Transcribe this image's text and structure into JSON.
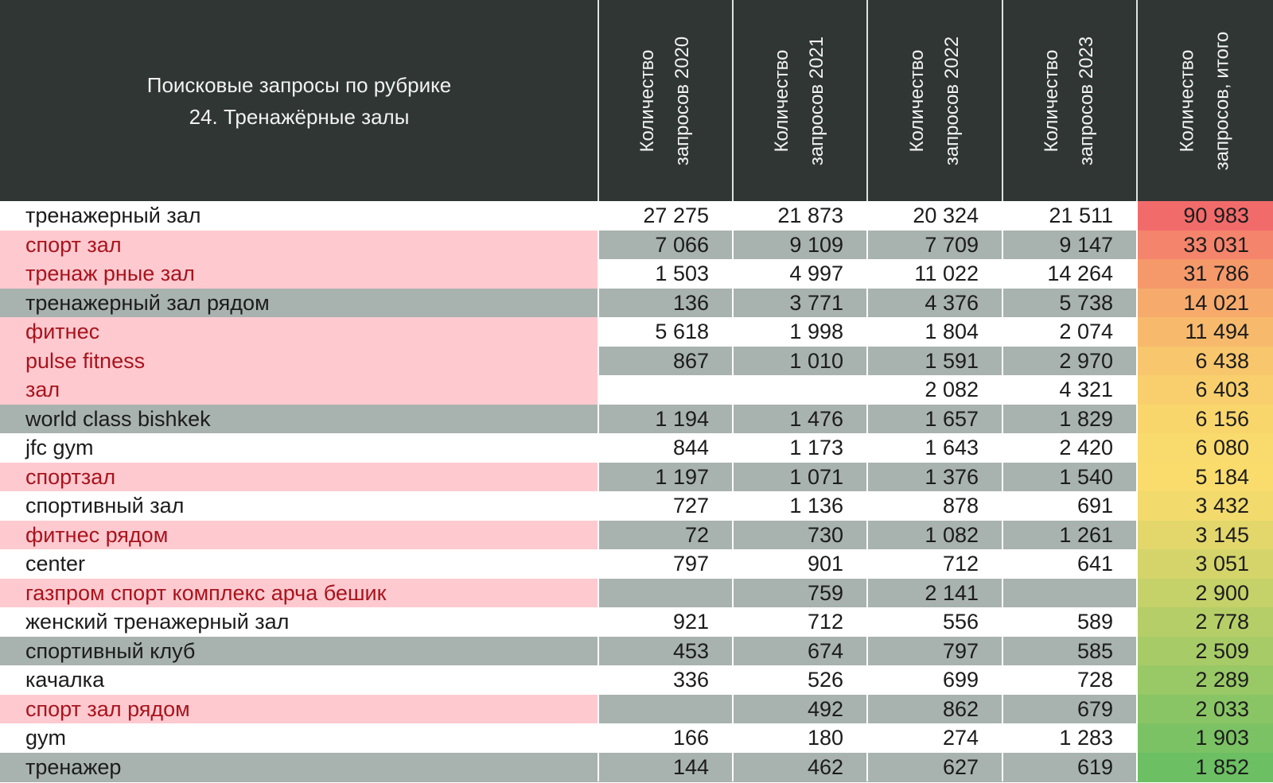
{
  "chart_data": {
    "type": "table",
    "title_lines": [
      "Поисковые запросы по рубрике",
      "24. Тренажёрные залы"
    ],
    "columns": [
      {
        "line1": "Количество",
        "line2": "запросов 2020"
      },
      {
        "line1": "Количество",
        "line2": "запросов 2021"
      },
      {
        "line1": "Количество",
        "line2": "запросов 2022"
      },
      {
        "line1": "Количество",
        "line2": "запросов 2023"
      },
      {
        "line1": "Количество",
        "line2": "запросов, итого"
      }
    ],
    "rows": [
      {
        "query": "тренажерный зал",
        "highlight": false,
        "values": [
          "27 275",
          "21 873",
          "20 324",
          "21 511"
        ],
        "total": "90 983",
        "total_value": 90983
      },
      {
        "query": "спорт зал",
        "highlight": true,
        "values": [
          "7 066",
          "9 109",
          "7 709",
          "9 147"
        ],
        "total": "33 031",
        "total_value": 33031
      },
      {
        "query": "тренаж рные зал",
        "highlight": true,
        "values": [
          "1 503",
          "4 997",
          "11 022",
          "14 264"
        ],
        "total": "31 786",
        "total_value": 31786
      },
      {
        "query": "тренажерный зал рядом",
        "highlight": false,
        "values": [
          "136",
          "3 771",
          "4 376",
          "5 738"
        ],
        "total": "14 021",
        "total_value": 14021
      },
      {
        "query": "фитнес",
        "highlight": true,
        "values": [
          "5 618",
          "1 998",
          "1 804",
          "2 074"
        ],
        "total": "11 494",
        "total_value": 11494
      },
      {
        "query": "pulse fitness",
        "highlight": true,
        "values": [
          "867",
          "1 010",
          "1 591",
          "2 970"
        ],
        "total": "6 438",
        "total_value": 6438
      },
      {
        "query": "зал",
        "highlight": true,
        "values": [
          "",
          "",
          "2 082",
          "4 321"
        ],
        "total": "6 403",
        "total_value": 6403
      },
      {
        "query": "world class bishkek",
        "highlight": false,
        "values": [
          "1 194",
          "1 476",
          "1 657",
          "1 829"
        ],
        "total": "6 156",
        "total_value": 6156
      },
      {
        "query": "jfc gym",
        "highlight": false,
        "values": [
          "844",
          "1 173",
          "1 643",
          "2 420"
        ],
        "total": "6 080",
        "total_value": 6080
      },
      {
        "query": "спортзал",
        "highlight": true,
        "values": [
          "1 197",
          "1 071",
          "1 376",
          "1 540"
        ],
        "total": "5 184",
        "total_value": 5184
      },
      {
        "query": "спортивный зал",
        "highlight": false,
        "values": [
          "727",
          "1 136",
          "878",
          "691"
        ],
        "total": "3 432",
        "total_value": 3432
      },
      {
        "query": "фитнес рядом",
        "highlight": true,
        "values": [
          "72",
          "730",
          "1 082",
          "1 261"
        ],
        "total": "3 145",
        "total_value": 3145
      },
      {
        "query": "center",
        "highlight": false,
        "values": [
          "797",
          "901",
          "712",
          "641"
        ],
        "total": "3 051",
        "total_value": 3051
      },
      {
        "query": "газпром спорт комплекс арча бешик",
        "highlight": true,
        "values": [
          "",
          "759",
          "2 141",
          ""
        ],
        "total": "2 900",
        "total_value": 2900
      },
      {
        "query": "женский тренажерный зал",
        "highlight": false,
        "values": [
          "921",
          "712",
          "556",
          "589"
        ],
        "total": "2 778",
        "total_value": 2778
      },
      {
        "query": "спортивный клуб",
        "highlight": false,
        "values": [
          "453",
          "674",
          "797",
          "585"
        ],
        "total": "2 509",
        "total_value": 2509
      },
      {
        "query": "качалка",
        "highlight": false,
        "values": [
          "336",
          "526",
          "699",
          "728"
        ],
        "total": "2 289",
        "total_value": 2289
      },
      {
        "query": "спорт зал рядом",
        "highlight": true,
        "values": [
          "",
          "492",
          "862",
          "679"
        ],
        "total": "2 033",
        "total_value": 2033
      },
      {
        "query": "gym",
        "highlight": false,
        "values": [
          "166",
          "180",
          "274",
          "1 283"
        ],
        "total": "1 903",
        "total_value": 1903
      },
      {
        "query": "тренажер",
        "highlight": false,
        "values": [
          "144",
          "462",
          "627",
          "619"
        ],
        "total": "1 852",
        "total_value": 1852
      }
    ],
    "colors": {
      "header_bg": "#2f3634",
      "header_text": "#f2f2f2",
      "row_white": "#ffffff",
      "row_gray": "#a8b2ae",
      "name_highlight_bg": "#ffc9d0",
      "name_highlight_text": "#a8141c",
      "scale_high": "#f26b6b",
      "scale_mid": "#f9dc6c",
      "scale_low": "#6cbf63"
    }
  }
}
